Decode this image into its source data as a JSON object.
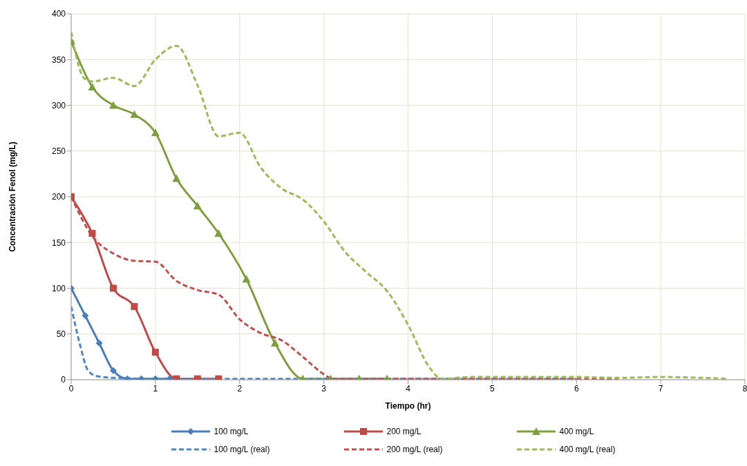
{
  "chart_data": {
    "type": "line",
    "xlabel": "Tiempo (hr)",
    "ylabel": "Concentración Fenol (mg/L)",
    "xlim": [
      0,
      8
    ],
    "xticks": [
      0,
      1,
      2,
      3,
      4,
      5,
      6,
      7,
      8
    ],
    "ylim": [
      0,
      400
    ],
    "yticks": [
      0,
      50,
      100,
      150,
      200,
      250,
      300,
      350,
      400
    ],
    "grid": true,
    "legend": "bottom",
    "series": [
      {
        "name": "100 mg/L",
        "color": "#4a7ebb",
        "marker": "diamond",
        "line_style": "solid",
        "x": [
          0,
          0.167,
          0.333,
          0.5,
          0.667,
          0.833,
          1,
          1.167
        ],
        "values": [
          100,
          70,
          40,
          10,
          1,
          1,
          1,
          1
        ]
      },
      {
        "name": "200 mg/L",
        "color": "#be4b48",
        "marker": "square",
        "line_style": "solid",
        "x": [
          0,
          0.25,
          0.5,
          0.75,
          1,
          1.25,
          1.5,
          1.75
        ],
        "values": [
          200,
          160,
          100,
          80,
          30,
          1,
          1,
          1
        ]
      },
      {
        "name": "400 mg/L",
        "color": "#7f9f3f",
        "marker": "triangle",
        "line_style": "solid",
        "x": [
          0,
          0.25,
          0.5,
          0.75,
          1,
          1.25,
          1.5,
          1.75,
          2.08,
          2.42,
          2.75,
          3.08,
          3.42,
          3.75
        ],
        "values": [
          370,
          320,
          300,
          290,
          270,
          220,
          190,
          160,
          110,
          40,
          1,
          1,
          1,
          1
        ]
      },
      {
        "name": "100 mg/L (real)",
        "color": "#4f86c6",
        "marker": "none",
        "line_style": "dashed",
        "x": [
          0,
          0.1,
          0.2,
          0.3,
          0.5,
          1,
          2,
          4,
          6
        ],
        "values": [
          80,
          40,
          10,
          4,
          2,
          1,
          1,
          1,
          1
        ]
      },
      {
        "name": "200 mg/L (real)",
        "color": "#c0504d",
        "marker": "none",
        "line_style": "dashed",
        "x": [
          0,
          0.25,
          0.5,
          0.75,
          1,
          1.25,
          1.5,
          1.75,
          2,
          2.25,
          2.5,
          2.75,
          3,
          3.1,
          4,
          5,
          6.5
        ],
        "values": [
          200,
          157,
          138,
          130,
          129,
          108,
          98,
          93,
          66,
          51,
          43,
          25,
          6,
          1,
          1,
          1,
          1
        ]
      },
      {
        "name": "400 mg/L (real)",
        "color": "#9bbb59",
        "marker": "none",
        "line_style": "dashed",
        "x": [
          0,
          0.15,
          0.25,
          0.5,
          0.75,
          1,
          1.25,
          1.5,
          1.75,
          2,
          2.25,
          2.5,
          2.75,
          3,
          3.25,
          3.5,
          3.75,
          4,
          4.25,
          4.4,
          4.75,
          5,
          6,
          6.5,
          7,
          7.5,
          7.8
        ],
        "values": [
          380,
          330,
          326,
          330,
          321,
          350,
          365,
          322,
          266,
          270,
          232,
          209,
          197,
          173,
          140,
          118,
          97,
          60,
          14,
          1,
          3,
          3,
          3,
          2,
          3,
          2,
          1
        ]
      }
    ]
  }
}
